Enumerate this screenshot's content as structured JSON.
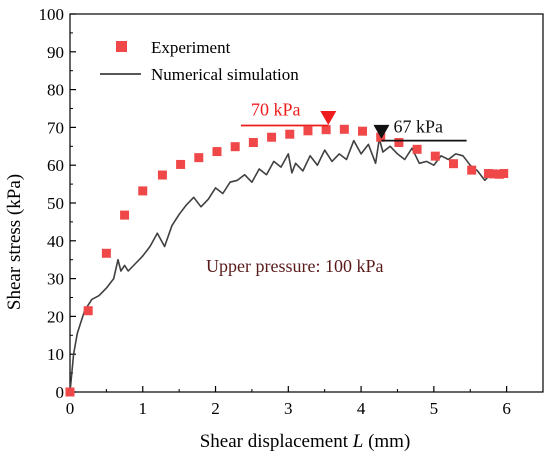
{
  "chart_data": {
    "type": "scatter",
    "xlabel_prefix": "Shear displacement ",
    "xlabel_var": "L",
    "xlabel_suffix": " (mm)",
    "ylabel": "Shear stress (kPa)",
    "xlim": [
      0,
      6.5
    ],
    "ylim": [
      0,
      100
    ],
    "x_ticks": [
      0,
      1,
      2,
      3,
      4,
      5,
      6
    ],
    "y_ticks": [
      0,
      10,
      20,
      30,
      40,
      50,
      60,
      70,
      80,
      90,
      100
    ],
    "grid": false,
    "legend_position": "top-left",
    "annotation_text": "Upper pressure: 100 kPa",
    "colors": {
      "experiment": "#f04848",
      "simulation": "#404040",
      "peak_exp": "#ee1c1c",
      "peak_sim": "#111111",
      "annotation": "#5a1a1a"
    },
    "series": [
      {
        "name": "Experiment",
        "kind": "markers",
        "x": [
          0.0,
          0.25,
          0.5,
          0.75,
          1.0,
          1.27,
          1.52,
          1.77,
          2.02,
          2.27,
          2.52,
          2.77,
          3.02,
          3.27,
          3.52,
          3.77,
          4.02,
          4.27,
          4.52,
          4.77,
          5.02,
          5.27,
          5.52,
          5.75,
          5.82,
          5.9,
          5.96
        ],
        "y": [
          0.0,
          21.5,
          36.7,
          46.8,
          53.2,
          57.4,
          60.2,
          62.0,
          63.6,
          64.9,
          66.0,
          67.4,
          68.2,
          69.1,
          69.4,
          69.5,
          69.0,
          67.4,
          66.0,
          64.2,
          62.4,
          60.4,
          58.7,
          57.8,
          57.7,
          57.6,
          57.8
        ]
      },
      {
        "name": "Numerical simulation",
        "kind": "line",
        "x": [
          0.0,
          0.05,
          0.1,
          0.15,
          0.2,
          0.3,
          0.4,
          0.5,
          0.6,
          0.66,
          0.7,
          0.75,
          0.8,
          0.9,
          1.0,
          1.1,
          1.2,
          1.3,
          1.4,
          1.5,
          1.6,
          1.7,
          1.8,
          1.9,
          2.0,
          2.1,
          2.2,
          2.3,
          2.4,
          2.5,
          2.6,
          2.7,
          2.8,
          2.9,
          3.0,
          3.05,
          3.1,
          3.2,
          3.3,
          3.4,
          3.5,
          3.6,
          3.7,
          3.8,
          3.9,
          4.0,
          4.1,
          4.2,
          4.25,
          4.3,
          4.4,
          4.5,
          4.6,
          4.7,
          4.8,
          4.9,
          5.0,
          5.1,
          5.2,
          5.3,
          5.4,
          5.5,
          5.6,
          5.7,
          5.8,
          5.9,
          6.0
        ],
        "y": [
          0.0,
          10.0,
          15.5,
          18.5,
          21.5,
          24.5,
          25.5,
          27.5,
          30.0,
          35.0,
          32.0,
          33.5,
          32.0,
          34.0,
          36.0,
          38.5,
          42.0,
          38.5,
          44.0,
          47.0,
          49.5,
          51.5,
          49.0,
          51.0,
          54.0,
          52.5,
          55.5,
          56.0,
          57.5,
          55.5,
          59.0,
          57.5,
          61.0,
          59.5,
          63.0,
          58.0,
          60.5,
          58.5,
          62.5,
          60.0,
          64.0,
          61.0,
          63.0,
          61.5,
          66.5,
          63.0,
          65.5,
          60.5,
          67.0,
          63.5,
          65.0,
          63.0,
          61.5,
          64.5,
          60.5,
          61.0,
          60.0,
          62.5,
          61.5,
          63.0,
          62.5,
          60.0,
          58.5,
          56.0,
          58.0,
          57.5,
          57.5
        ]
      }
    ],
    "peak_markers": [
      {
        "label": "70 kPa",
        "x": 3.55,
        "y": 72.5,
        "line_x": [
          2.35,
          3.55
        ],
        "line_y": 70.5,
        "color": "peak_exp"
      },
      {
        "label": "67 kPa",
        "x": 4.28,
        "y": 68.8,
        "line_x": [
          4.28,
          5.45
        ],
        "line_y": 66.5,
        "color": "peak_sim"
      }
    ]
  }
}
